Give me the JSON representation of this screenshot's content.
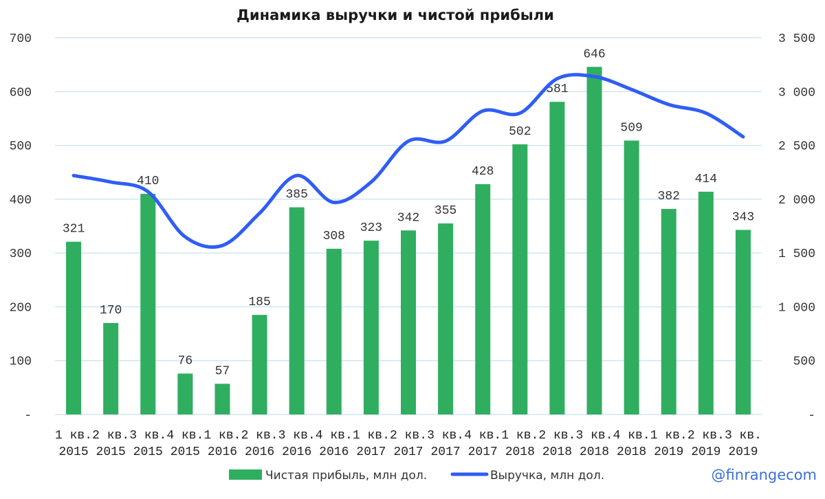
{
  "chart_data": {
    "type": "bar",
    "title": "Динамика выручки и чистой прибыли",
    "categories": [
      [
        "1 кв.",
        "2015"
      ],
      [
        "2 кв.",
        "2015"
      ],
      [
        "3 кв.",
        "2015"
      ],
      [
        "4 кв.",
        "2015"
      ],
      [
        "1 кв.",
        "2016"
      ],
      [
        "2 кв.",
        "2016"
      ],
      [
        "3 кв.",
        "2016"
      ],
      [
        "4 кв.",
        "2016"
      ],
      [
        "1 кв.",
        "2017"
      ],
      [
        "2 кв.",
        "2017"
      ],
      [
        "3 кв.",
        "2017"
      ],
      [
        "4 кв.",
        "2017"
      ],
      [
        "1 кв.",
        "2018"
      ],
      [
        "2 кв.",
        "2018"
      ],
      [
        "3 кв.",
        "2018"
      ],
      [
        "4 кв.",
        "2018"
      ],
      [
        "1 кв.",
        "2019"
      ],
      [
        "2 кв.",
        "2019"
      ],
      [
        "3 кв.",
        "2019"
      ]
    ],
    "series": [
      {
        "name": "Чистая прибыль, млн дол.",
        "type": "bar",
        "axis": "left",
        "color": "#2fae60",
        "values": [
          321,
          170,
          410,
          76,
          57,
          185,
          385,
          308,
          323,
          342,
          355,
          428,
          502,
          581,
          646,
          509,
          382,
          414,
          343
        ]
      },
      {
        "name": "Выручка, млн дол.",
        "type": "line",
        "axis": "right",
        "color": "#2f5df5",
        "values": [
          2220,
          2160,
          2070,
          1650,
          1570,
          1870,
          2220,
          1970,
          2160,
          2540,
          2540,
          2820,
          2800,
          3120,
          3140,
          3020,
          2880,
          2800,
          2580
        ]
      }
    ],
    "y_left": {
      "min": 0,
      "max": 700,
      "ticks": [
        "-",
        "100",
        "200",
        "300",
        "400",
        "500",
        "600",
        "700"
      ]
    },
    "y_right": {
      "min": 0,
      "max": 3500,
      "ticks": [
        "-",
        "500",
        "1 000",
        "1 500",
        "2 000",
        "2 500",
        "3 000",
        "3 500"
      ]
    },
    "grid": true,
    "legend_position": "bottom"
  },
  "watermark": "@finrangecom"
}
